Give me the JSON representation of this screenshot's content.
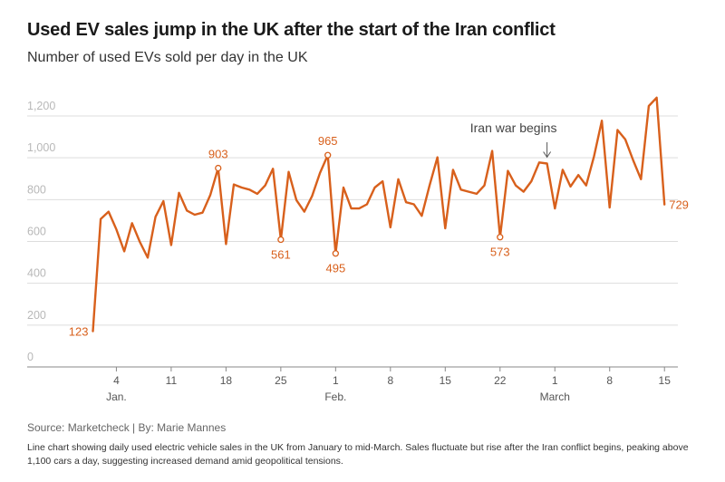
{
  "title": "Used EV sales jump in the UK after the start of the Iran conflict",
  "subtitle": "Number of used EVs sold per day in the UK",
  "source": "Source: Marketcheck | By: Marie Mannes",
  "description": "Line chart showing daily used electric vehicle sales in the UK from January to mid-March. Sales fluctuate but rise after the Iran conflict begins, peaking above 1,100 cars a day, suggesting increased demand amid geopolitical tensions.",
  "colors": {
    "line": "#d8601c",
    "grid": "#dddddd",
    "axis": "#888888"
  },
  "chart_data": {
    "type": "line",
    "title": "Used EV sales jump in the UK after the start of the Iran conflict",
    "ylabel": "Number of used EVs sold per day",
    "ylim": [
      0,
      1250
    ],
    "y_ticks": [
      0,
      200,
      400,
      600,
      800,
      1000,
      1200
    ],
    "y_tick_labels": [
      "0",
      "200",
      "400",
      "600",
      "800",
      "1,000",
      "1,200"
    ],
    "x_ticks": [
      {
        "day": 4,
        "label": "4",
        "month": "Jan."
      },
      {
        "day": 11,
        "label": "11"
      },
      {
        "day": 18,
        "label": "18"
      },
      {
        "day": 25,
        "label": "25"
      },
      {
        "day": 32,
        "label": "1",
        "month": "Feb."
      },
      {
        "day": 39,
        "label": "8"
      },
      {
        "day": 46,
        "label": "15"
      },
      {
        "day": 53,
        "label": "22"
      },
      {
        "day": 60,
        "label": "1",
        "month": "March"
      },
      {
        "day": 67,
        "label": "8"
      },
      {
        "day": 74,
        "label": "15"
      }
    ],
    "series": [
      {
        "name": "Used EVs sold per day",
        "start_day": 1,
        "values": [
          123,
          660,
          695,
          610,
          505,
          640,
          550,
          475,
          670,
          745,
          535,
          785,
          700,
          680,
          690,
          775,
          903,
          540,
          825,
          810,
          800,
          780,
          820,
          900,
          561,
          885,
          750,
          695,
          770,
          880,
          965,
          495,
          810,
          710,
          710,
          730,
          810,
          840,
          620,
          850,
          740,
          730,
          675,
          820,
          955,
          615,
          895,
          800,
          790,
          780,
          820,
          985,
          573,
          890,
          820,
          790,
          840,
          930,
          925,
          710,
          895,
          815,
          870,
          820,
          960,
          1130,
          715,
          1085,
          1040,
          940,
          850,
          1200,
          1240,
          729
        ]
      }
    ],
    "point_labels": [
      {
        "day": 1,
        "value": 123,
        "label": "123",
        "position": "left"
      },
      {
        "day": 17,
        "value": 903,
        "label": "903",
        "position": "above"
      },
      {
        "day": 25,
        "value": 561,
        "label": "561",
        "position": "below"
      },
      {
        "day": 31,
        "value": 965,
        "label": "965",
        "position": "above"
      },
      {
        "day": 32,
        "value": 495,
        "label": "495",
        "position": "below"
      },
      {
        "day": 53,
        "value": 573,
        "label": "573",
        "position": "below"
      },
      {
        "day": 74,
        "value": 729,
        "label": "729",
        "position": "right"
      }
    ],
    "annotation": {
      "text": "Iran war begins",
      "day": 59,
      "value": 925
    }
  }
}
